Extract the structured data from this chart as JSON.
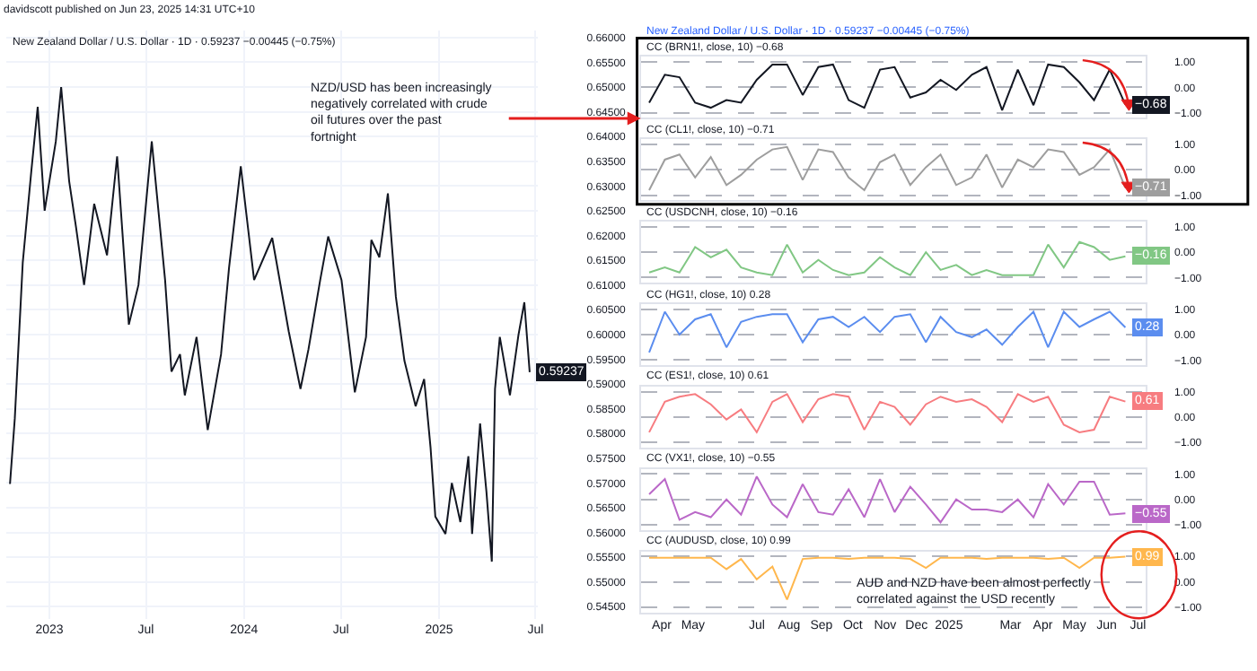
{
  "chart_data": [
    {
      "type": "line",
      "title": "New Zealand Dollar / U.S. Dollar · 1D · 0.59237 −0.00445 (−0.75%)",
      "grid": true,
      "annotations": [
        "davidscott published on Jun 23, 2025 14:31 UTC+10",
        "NZD/USD has been increasingly negatively correlated with crude oil futures over the past fortnight"
      ],
      "x": [
        "2022-10-19",
        "2022-10-28",
        "2022-11-12",
        "2022-11-28",
        "2022-12-10",
        "2022-12-23",
        "2023-01-13",
        "2023-01-23",
        "2023-02-07",
        "2023-02-20",
        "2023-03-07",
        "2023-03-26",
        "2023-04-19",
        "2023-05-08",
        "2023-05-30",
        "2023-06-17",
        "2023-07-12",
        "2023-08-06",
        "2023-08-18",
        "2023-09-03",
        "2023-09-12",
        "2023-10-04",
        "2023-10-25",
        "2023-11-19",
        "2023-12-04",
        "2023-12-26",
        "2024-01-20",
        "2024-02-23",
        "2024-03-25",
        "2024-04-16",
        "2024-05-01",
        "2024-05-23",
        "2024-06-07",
        "2024-07-02",
        "2024-07-27",
        "2024-08-17",
        "2024-08-27",
        "2024-09-11",
        "2024-09-27",
        "2024-10-12",
        "2024-10-28",
        "2024-11-18",
        "2024-12-04",
        "2024-12-16",
        "2024-12-25",
        "2025-01-13",
        "2025-01-25",
        "2025-02-10",
        "2025-02-25",
        "2025-03-04",
        "2025-03-19",
        "2025-03-31",
        "2025-04-10",
        "2025-04-16",
        "2025-04-25",
        "2025-05-14",
        "2025-05-30",
        "2025-06-10",
        "2025-06-20"
      ],
      "series": [
        {
          "color": "#131722",
          "values": [
            0.5698,
            0.583,
            0.6146,
            0.633,
            0.646,
            0.625,
            0.639,
            0.65,
            0.631,
            0.6216,
            0.61,
            0.6264,
            0.616,
            0.636,
            0.602,
            0.61,
            0.639,
            0.611,
            0.5925,
            0.596,
            0.5877,
            0.5995,
            0.5807,
            0.596,
            0.6135,
            0.634,
            0.611,
            0.6195,
            0.6006,
            0.589,
            0.597,
            0.611,
            0.6198,
            0.611,
            0.5883,
            0.5995,
            0.6191,
            0.6156,
            0.6285,
            0.6076,
            0.5947,
            0.5855,
            0.591,
            0.5772,
            0.5632,
            0.5597,
            0.57,
            0.5621,
            0.5754,
            0.5597,
            0.582,
            0.5681,
            0.5541,
            0.589,
            0.5995,
            0.5877,
            0.5999,
            0.6065,
            0.59237
          ],
          "value_labels": [
            null,
            null,
            null,
            null,
            null,
            null,
            null,
            null,
            null,
            null,
            null,
            null,
            null,
            null,
            null,
            null,
            null,
            null,
            null,
            null,
            null,
            null,
            null,
            null,
            null,
            null,
            null,
            null,
            null,
            null,
            null,
            null,
            null,
            null,
            null,
            null,
            null,
            null,
            null,
            null,
            null,
            null,
            null,
            null,
            null,
            null,
            null,
            null,
            null,
            null,
            null,
            null,
            null,
            null,
            null,
            null,
            null,
            null,
            "0.59237"
          ]
        }
      ],
      "xlim": [
        "2022-10-12",
        "2025-07-06"
      ],
      "xticks": [
        {
          "value": "2023-01-01",
          "label": "2023"
        },
        {
          "value": "2023-07-01",
          "label": "Jul"
        },
        {
          "value": "2024-01-01",
          "label": "2024"
        },
        {
          "value": "2024-07-01",
          "label": "Jul"
        },
        {
          "value": "2025-01-01",
          "label": "2025"
        },
        {
          "value": "2025-07-01",
          "label": "Jul"
        }
      ],
      "ylim": [
        0.5425,
        0.6615
      ],
      "yticks": [
        {
          "value": 0.545,
          "label": "0.54500"
        },
        {
          "value": 0.55,
          "label": "0.55000"
        },
        {
          "value": 0.555,
          "label": "0.55500"
        },
        {
          "value": 0.56,
          "label": "0.56000"
        },
        {
          "value": 0.565,
          "label": "0.56500"
        },
        {
          "value": 0.57,
          "label": "0.57000"
        },
        {
          "value": 0.575,
          "label": "0.57500"
        },
        {
          "value": 0.58,
          "label": "0.58000"
        },
        {
          "value": 0.585,
          "label": "0.58500"
        },
        {
          "value": 0.59,
          "label": "0.59000"
        },
        {
          "value": 0.595,
          "label": "0.59500"
        },
        {
          "value": 0.6,
          "label": "0.60000"
        },
        {
          "value": 0.605,
          "label": "0.60500"
        },
        {
          "value": 0.61,
          "label": "0.61000"
        },
        {
          "value": 0.615,
          "label": "0.61500"
        },
        {
          "value": 0.62,
          "label": "0.62000"
        },
        {
          "value": 0.625,
          "label": "0.62500"
        },
        {
          "value": 0.63,
          "label": "0.63000"
        },
        {
          "value": 0.635,
          "label": "0.63500"
        },
        {
          "value": 0.64,
          "label": "0.64000"
        },
        {
          "value": 0.645,
          "label": "0.64500"
        },
        {
          "value": 0.65,
          "label": "0.65000"
        },
        {
          "value": 0.655,
          "label": "0.65500"
        },
        {
          "value": 0.66,
          "label": "0.66000"
        }
      ]
    },
    {
      "type": "line",
      "subtitle": "New Zealand Dollar / U.S. Dollar · 1D · 0.59237 −0.00445 (−0.75%)",
      "title": "CC (BRN1!, close, 10) −0.68",
      "grid": "y",
      "tick_labels": "y",
      "x": [
        "2024-03-20",
        "2024-04-04",
        "2024-04-18",
        "2024-05-03",
        "2024-05-18",
        "2024-06-02",
        "2024-06-16",
        "2024-07-01",
        "2024-07-16",
        "2024-07-30",
        "2024-08-14",
        "2024-08-29",
        "2024-09-12",
        "2024-09-27",
        "2024-10-12",
        "2024-10-27",
        "2024-11-10",
        "2024-11-25",
        "2024-12-10",
        "2024-12-24",
        "2025-01-08",
        "2025-01-23",
        "2025-02-06",
        "2025-02-21",
        "2025-03-08",
        "2025-03-23",
        "2025-04-06",
        "2025-04-21",
        "2025-05-06",
        "2025-05-20",
        "2025-06-04",
        "2025-06-19"
      ],
      "series": [
        {
          "color": "#131722",
          "values": [
            -0.6,
            0.5,
            0.4,
            -0.6,
            -0.8,
            -0.5,
            -0.6,
            0.3,
            0.9,
            0.9,
            -0.3,
            0.8,
            0.9,
            -0.5,
            -0.8,
            0.7,
            0.8,
            -0.4,
            -0.2,
            0.3,
            -0.1,
            0.5,
            0.8,
            -0.9,
            0.7,
            -0.7,
            0.9,
            0.8,
            0.2,
            -0.5,
            0.7,
            -0.68
          ],
          "value_labels": [
            null,
            null,
            null,
            null,
            null,
            null,
            null,
            null,
            null,
            null,
            null,
            null,
            null,
            null,
            null,
            null,
            null,
            null,
            null,
            null,
            null,
            null,
            null,
            null,
            null,
            null,
            null,
            null,
            null,
            null,
            null,
            "−0.68"
          ]
        }
      ],
      "xlim": [
        "2024-03-12",
        "2025-07-08"
      ],
      "ylim": [
        -1.2,
        1.2
      ],
      "yticks": [
        {
          "value": -1,
          "label": "−1.00"
        },
        {
          "value": 0,
          "label": "0.00"
        },
        {
          "value": 1,
          "label": "1.00"
        }
      ]
    },
    {
      "type": "line",
      "title": "CC (CL1!, close, 10) −0.71",
      "grid": "y",
      "tick_labels": "y",
      "x": [
        "2024-03-20",
        "2024-04-04",
        "2024-04-18",
        "2024-05-03",
        "2024-05-18",
        "2024-06-02",
        "2024-06-16",
        "2024-07-01",
        "2024-07-16",
        "2024-07-30",
        "2024-08-14",
        "2024-08-29",
        "2024-09-12",
        "2024-09-27",
        "2024-10-12",
        "2024-10-27",
        "2024-11-10",
        "2024-11-25",
        "2024-12-10",
        "2024-12-24",
        "2025-01-08",
        "2025-01-23",
        "2025-02-06",
        "2025-02-21",
        "2025-03-08",
        "2025-03-23",
        "2025-04-06",
        "2025-04-21",
        "2025-05-06",
        "2025-05-20",
        "2025-06-04",
        "2025-06-19"
      ],
      "series": [
        {
          "color": "#9e9e9e",
          "values": [
            -0.8,
            0.4,
            0.6,
            -0.3,
            0.5,
            -0.6,
            -0.2,
            0.4,
            0.8,
            0.9,
            -0.4,
            0.8,
            0.7,
            -0.3,
            -0.8,
            0.3,
            0.6,
            -0.6,
            0.1,
            0.6,
            -0.6,
            -0.3,
            0.6,
            -0.7,
            0.4,
            0.1,
            0.8,
            0.7,
            -0.2,
            0.1,
            0.8,
            -0.71
          ],
          "value_labels": [
            null,
            null,
            null,
            null,
            null,
            null,
            null,
            null,
            null,
            null,
            null,
            null,
            null,
            null,
            null,
            null,
            null,
            null,
            null,
            null,
            null,
            null,
            null,
            null,
            null,
            null,
            null,
            null,
            null,
            null,
            null,
            "−0.71"
          ]
        }
      ],
      "xlim": [
        "2024-03-12",
        "2025-07-08"
      ],
      "ylim": [
        -1.2,
        1.2
      ],
      "yticks": [
        {
          "value": -1,
          "label": "−1.00"
        },
        {
          "value": 0,
          "label": "0.00"
        },
        {
          "value": 1,
          "label": "1.00"
        }
      ]
    },
    {
      "type": "line",
      "title": "CC (USDCNH, close, 10) −0.16",
      "grid": "y",
      "tick_labels": "y",
      "x": [
        "2024-03-20",
        "2024-04-04",
        "2024-04-18",
        "2024-05-03",
        "2024-05-18",
        "2024-06-02",
        "2024-06-16",
        "2024-07-01",
        "2024-07-16",
        "2024-07-30",
        "2024-08-14",
        "2024-08-29",
        "2024-09-12",
        "2024-09-27",
        "2024-10-12",
        "2024-10-27",
        "2024-11-10",
        "2024-11-25",
        "2024-12-10",
        "2024-12-24",
        "2025-01-08",
        "2025-01-23",
        "2025-02-06",
        "2025-02-21",
        "2025-03-08",
        "2025-03-23",
        "2025-04-06",
        "2025-04-21",
        "2025-05-06",
        "2025-05-20",
        "2025-06-04",
        "2025-06-19"
      ],
      "series": [
        {
          "color": "#81c784",
          "values": [
            -0.8,
            -0.6,
            -0.8,
            0.2,
            -0.2,
            0.1,
            -0.6,
            -0.8,
            -0.9,
            0.3,
            -0.8,
            -0.3,
            -0.7,
            -0.9,
            -0.8,
            -0.2,
            -0.6,
            -0.9,
            0.0,
            -0.7,
            -0.5,
            -0.9,
            -0.7,
            -0.9,
            -0.9,
            -0.9,
            0.3,
            -0.6,
            0.4,
            0.2,
            -0.3,
            -0.16
          ],
          "value_labels": [
            null,
            null,
            null,
            null,
            null,
            null,
            null,
            null,
            null,
            null,
            null,
            null,
            null,
            null,
            null,
            null,
            null,
            null,
            null,
            null,
            null,
            null,
            null,
            null,
            null,
            null,
            null,
            null,
            null,
            null,
            null,
            "−0.16"
          ]
        }
      ],
      "xlim": [
        "2024-03-12",
        "2025-07-08"
      ],
      "ylim": [
        -1.2,
        1.2
      ],
      "yticks": [
        {
          "value": -1,
          "label": "−1.00"
        },
        {
          "value": 0,
          "label": "0.00"
        },
        {
          "value": 1,
          "label": "1.00"
        }
      ]
    },
    {
      "type": "line",
      "title": "CC (HG1!, close, 10) 0.28",
      "grid": "y",
      "tick_labels": "y",
      "x": [
        "2024-03-20",
        "2024-04-04",
        "2024-04-18",
        "2024-05-03",
        "2024-05-18",
        "2024-06-02",
        "2024-06-16",
        "2024-07-01",
        "2024-07-16",
        "2024-07-30",
        "2024-08-14",
        "2024-08-29",
        "2024-09-12",
        "2024-09-27",
        "2024-10-12",
        "2024-10-27",
        "2024-11-10",
        "2024-11-25",
        "2024-12-10",
        "2024-12-24",
        "2025-01-08",
        "2025-01-23",
        "2025-02-06",
        "2025-02-21",
        "2025-03-08",
        "2025-03-23",
        "2025-04-06",
        "2025-04-21",
        "2025-05-06",
        "2025-05-20",
        "2025-06-04",
        "2025-06-19"
      ],
      "series": [
        {
          "color": "#5b8def",
          "values": [
            -0.7,
            0.9,
            0.0,
            0.6,
            0.8,
            -0.5,
            0.5,
            0.7,
            0.8,
            0.8,
            -0.3,
            0.6,
            0.7,
            0.3,
            0.7,
            0.1,
            0.7,
            0.8,
            -0.3,
            0.7,
            0.1,
            -0.1,
            0.2,
            -0.4,
            0.3,
            0.9,
            -0.5,
            0.9,
            0.3,
            0.6,
            0.9,
            0.28
          ],
          "value_labels": [
            null,
            null,
            null,
            null,
            null,
            null,
            null,
            null,
            null,
            null,
            null,
            null,
            null,
            null,
            null,
            null,
            null,
            null,
            null,
            null,
            null,
            null,
            null,
            null,
            null,
            null,
            null,
            null,
            null,
            null,
            null,
            "0.28"
          ]
        }
      ],
      "xlim": [
        "2024-03-12",
        "2025-07-08"
      ],
      "ylim": [
        -1.2,
        1.2
      ],
      "yticks": [
        {
          "value": -1,
          "label": "−1.00"
        },
        {
          "value": 0,
          "label": "0.00"
        },
        {
          "value": 1,
          "label": "1.00"
        }
      ]
    },
    {
      "type": "line",
      "title": "CC (ES1!, close, 10) 0.61",
      "grid": "y",
      "tick_labels": "y",
      "x": [
        "2024-03-20",
        "2024-04-04",
        "2024-04-18",
        "2024-05-03",
        "2024-05-18",
        "2024-06-02",
        "2024-06-16",
        "2024-07-01",
        "2024-07-16",
        "2024-07-30",
        "2024-08-14",
        "2024-08-29",
        "2024-09-12",
        "2024-09-27",
        "2024-10-12",
        "2024-10-27",
        "2024-11-10",
        "2024-11-25",
        "2024-12-10",
        "2024-12-24",
        "2025-01-08",
        "2025-01-23",
        "2025-02-06",
        "2025-02-21",
        "2025-03-08",
        "2025-03-23",
        "2025-04-06",
        "2025-04-21",
        "2025-05-06",
        "2025-05-20",
        "2025-06-04",
        "2025-06-19"
      ],
      "series": [
        {
          "color": "#f77c80",
          "values": [
            -0.6,
            0.6,
            0.8,
            0.9,
            0.5,
            -0.1,
            0.3,
            -0.6,
            0.6,
            0.9,
            -0.2,
            0.7,
            0.9,
            0.8,
            -0.5,
            0.6,
            0.4,
            -0.3,
            0.5,
            0.8,
            0.6,
            0.7,
            0.4,
            -0.2,
            0.9,
            0.6,
            0.8,
            -0.3,
            -0.6,
            -0.5,
            0.8,
            0.61
          ],
          "value_labels": [
            null,
            null,
            null,
            null,
            null,
            null,
            null,
            null,
            null,
            null,
            null,
            null,
            null,
            null,
            null,
            null,
            null,
            null,
            null,
            null,
            null,
            null,
            null,
            null,
            null,
            null,
            null,
            null,
            null,
            null,
            null,
            "0.61"
          ]
        }
      ],
      "xlim": [
        "2024-03-12",
        "2025-07-08"
      ],
      "ylim": [
        -1.2,
        1.2
      ],
      "yticks": [
        {
          "value": -1,
          "label": "−1.00"
        },
        {
          "value": 0,
          "label": "0.00"
        },
        {
          "value": 1,
          "label": "1.00"
        }
      ]
    },
    {
      "type": "line",
      "title": "CC (VX1!, close, 10) −0.55",
      "grid": "y",
      "tick_labels": "y",
      "x": [
        "2024-03-20",
        "2024-04-04",
        "2024-04-18",
        "2024-05-03",
        "2024-05-18",
        "2024-06-02",
        "2024-06-16",
        "2024-07-01",
        "2024-07-16",
        "2024-07-30",
        "2024-08-14",
        "2024-08-29",
        "2024-09-12",
        "2024-09-27",
        "2024-10-12",
        "2024-10-27",
        "2024-11-10",
        "2024-11-25",
        "2024-12-10",
        "2024-12-24",
        "2025-01-08",
        "2025-01-23",
        "2025-02-06",
        "2025-02-21",
        "2025-03-08",
        "2025-03-23",
        "2025-04-06",
        "2025-04-21",
        "2025-05-06",
        "2025-05-20",
        "2025-06-04",
        "2025-06-19"
      ],
      "series": [
        {
          "color": "#ba68c8",
          "values": [
            0.2,
            0.8,
            -0.8,
            -0.5,
            -0.7,
            0.0,
            -0.6,
            0.9,
            -0.2,
            -0.7,
            0.6,
            -0.5,
            -0.6,
            0.4,
            -0.7,
            0.8,
            -0.5,
            0.5,
            -0.2,
            -0.9,
            0.0,
            -0.4,
            -0.4,
            -0.5,
            0.0,
            -0.7,
            0.6,
            -0.2,
            0.7,
            0.7,
            -0.6,
            -0.55
          ],
          "value_labels": [
            null,
            null,
            null,
            null,
            null,
            null,
            null,
            null,
            null,
            null,
            null,
            null,
            null,
            null,
            null,
            null,
            null,
            null,
            null,
            null,
            null,
            null,
            null,
            null,
            null,
            null,
            null,
            null,
            null,
            null,
            null,
            "−0.55"
          ]
        }
      ],
      "xlim": [
        "2024-03-12",
        "2025-07-08"
      ],
      "ylim": [
        -1.2,
        1.2
      ],
      "yticks": [
        {
          "value": -1,
          "label": "−1.00"
        },
        {
          "value": 0,
          "label": "0.00"
        },
        {
          "value": 1,
          "label": "1.00"
        }
      ]
    },
    {
      "type": "line",
      "title": "CC (AUDUSD, close, 10) 0.99",
      "grid": "y",
      "annotations": [
        "AUD and NZD have been almost perfectly correlated against the USD recently"
      ],
      "x": [
        "2024-03-20",
        "2024-04-04",
        "2024-04-18",
        "2024-05-03",
        "2024-05-18",
        "2024-06-02",
        "2024-06-16",
        "2024-07-01",
        "2024-07-16",
        "2024-07-30",
        "2024-08-14",
        "2024-08-29",
        "2024-09-12",
        "2024-09-27",
        "2024-10-12",
        "2024-10-27",
        "2024-11-10",
        "2024-11-25",
        "2024-12-10",
        "2024-12-24",
        "2025-01-08",
        "2025-01-23",
        "2025-02-06",
        "2025-02-21",
        "2025-03-08",
        "2025-03-23",
        "2025-04-06",
        "2025-04-21",
        "2025-05-06",
        "2025-05-20",
        "2025-06-04",
        "2025-06-19"
      ],
      "series": [
        {
          "color": "#ffb74d",
          "values": [
            0.95,
            0.95,
            0.95,
            0.95,
            0.95,
            0.5,
            0.9,
            0.1,
            0.6,
            -0.7,
            0.9,
            0.95,
            0.95,
            0.9,
            0.95,
            0.95,
            0.95,
            0.9,
            0.55,
            0.95,
            0.95,
            0.95,
            0.9,
            0.95,
            0.95,
            0.95,
            0.9,
            0.95,
            0.55,
            0.95,
            0.95,
            0.99
          ],
          "value_labels": [
            null,
            null,
            null,
            null,
            null,
            null,
            null,
            null,
            null,
            null,
            null,
            null,
            null,
            null,
            null,
            null,
            null,
            null,
            null,
            null,
            null,
            null,
            null,
            null,
            null,
            null,
            null,
            null,
            null,
            null,
            null,
            "0.99"
          ]
        }
      ],
      "xlim": [
        "2024-03-12",
        "2025-07-08"
      ],
      "ylim": [
        -1.2,
        1.2
      ],
      "xticks": [
        {
          "value": "2024-04-01",
          "label": "Apr"
        },
        {
          "value": "2024-05-01",
          "label": "May"
        },
        {
          "value": "2024-07-01",
          "label": "Jul"
        },
        {
          "value": "2024-08-01",
          "label": "Aug"
        },
        {
          "value": "2024-09-01",
          "label": "Sep"
        },
        {
          "value": "2024-10-01",
          "label": "Oct"
        },
        {
          "value": "2024-11-01",
          "label": "Nov"
        },
        {
          "value": "2024-12-01",
          "label": "Dec"
        },
        {
          "value": "2025-01-01",
          "label": "2025"
        },
        {
          "value": "2025-03-01",
          "label": "Mar"
        },
        {
          "value": "2025-04-01",
          "label": "Apr"
        },
        {
          "value": "2025-05-01",
          "label": "May"
        },
        {
          "value": "2025-06-01",
          "label": "Jun"
        },
        {
          "value": "2025-07-01",
          "label": "Jul"
        }
      ],
      "yticks": [
        {
          "value": -1,
          "label": "−1.00"
        },
        {
          "value": 0,
          "label": "0.00"
        },
        {
          "value": 1,
          "label": "1.00"
        }
      ]
    }
  ]
}
